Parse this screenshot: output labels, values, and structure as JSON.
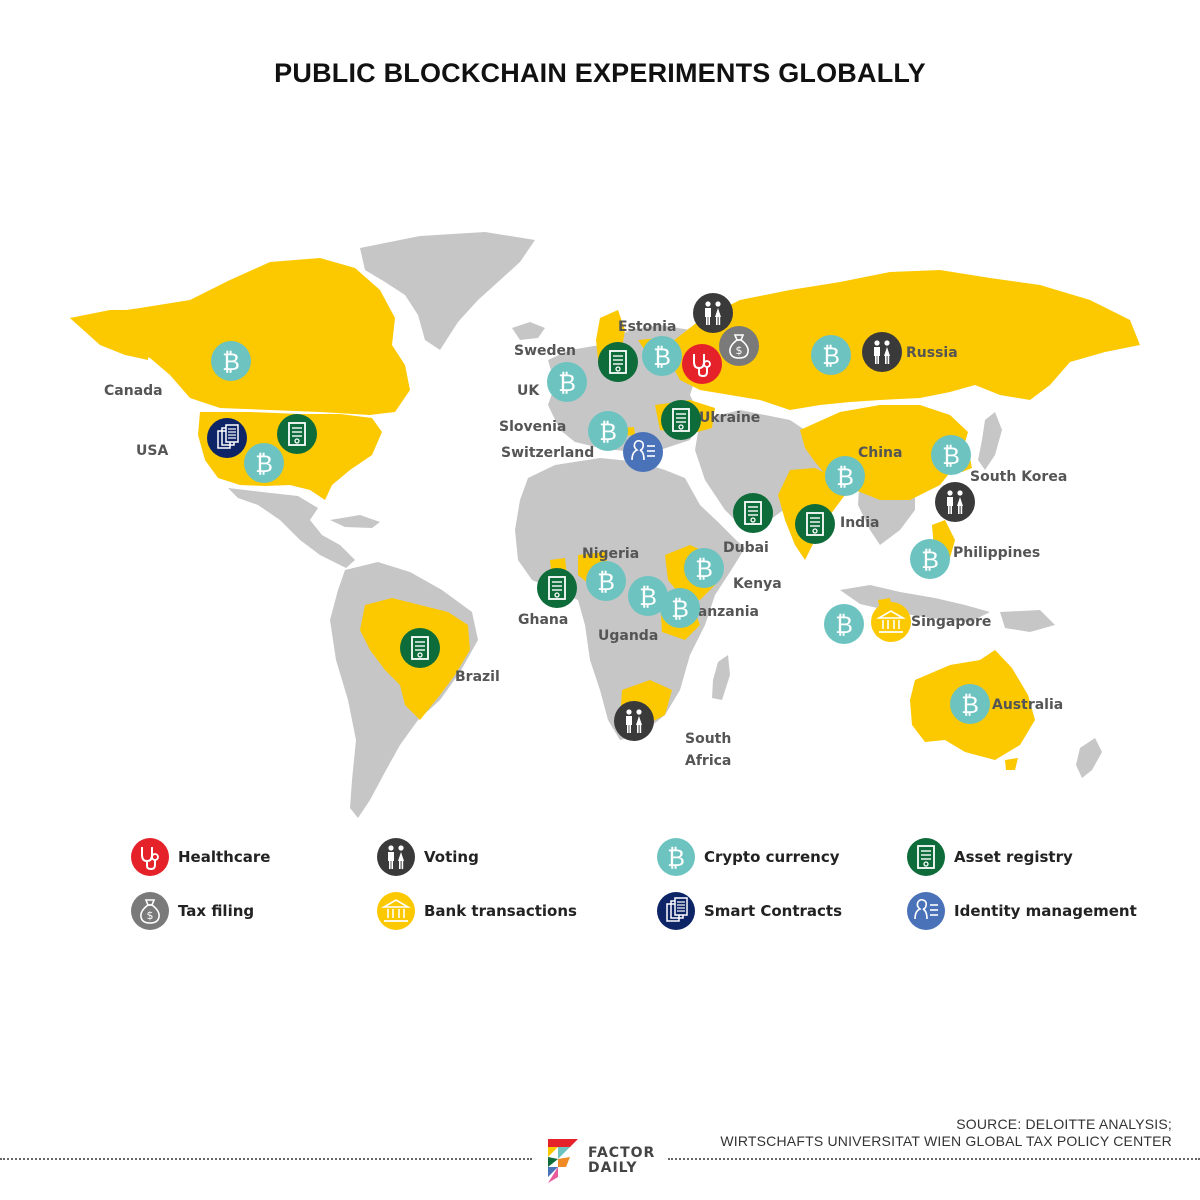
{
  "title": "PUBLIC BLOCKCHAIN EXPERIMENTS GLOBALLY",
  "colors": {
    "highlight": "#FCC800",
    "land": "#C6C6C6",
    "healthcare": "#E5212A",
    "voting": "#3A3A3A",
    "crypto": "#6CC3C0",
    "asset": "#0E6B3A",
    "tax": "#7A7A7A",
    "bank": "#FCC800",
    "smart": "#0D2466",
    "identity": "#4A72B8"
  },
  "countries": [
    {
      "name": "Canada",
      "icons": [
        "crypto"
      ]
    },
    {
      "name": "USA",
      "icons": [
        "smart",
        "asset",
        "crypto"
      ]
    },
    {
      "name": "Brazil",
      "icons": [
        "asset"
      ]
    },
    {
      "name": "Sweden",
      "icons": [
        "asset"
      ]
    },
    {
      "name": "Estonia",
      "icons": [
        "crypto",
        "voting",
        "healthcare",
        "tax"
      ]
    },
    {
      "name": "UK",
      "icons": [
        "crypto"
      ]
    },
    {
      "name": "Slovenia",
      "icons": [
        "crypto"
      ]
    },
    {
      "name": "Switzerland",
      "icons": [
        "identity"
      ]
    },
    {
      "name": "Ukraine",
      "icons": [
        "asset"
      ]
    },
    {
      "name": "Russia",
      "icons": [
        "crypto",
        "voting"
      ]
    },
    {
      "name": "China",
      "icons": [
        "crypto"
      ]
    },
    {
      "name": "South Korea",
      "icons": [
        "crypto",
        "voting"
      ]
    },
    {
      "name": "Dubai",
      "icons": [
        "asset"
      ]
    },
    {
      "name": "India",
      "icons": [
        "asset"
      ]
    },
    {
      "name": "Nigeria",
      "icons": [
        "crypto"
      ]
    },
    {
      "name": "Ghana",
      "icons": [
        "asset"
      ]
    },
    {
      "name": "Uganda",
      "icons": [
        "crypto"
      ]
    },
    {
      "name": "Kenya",
      "icons": [
        "crypto"
      ]
    },
    {
      "name": "Tanzania",
      "icons": [
        "crypto"
      ]
    },
    {
      "name": "Philippines",
      "icons": [
        "crypto"
      ]
    },
    {
      "name": "Singapore",
      "icons": [
        "crypto",
        "bank"
      ]
    },
    {
      "name": "Australia",
      "icons": [
        "crypto"
      ]
    },
    {
      "name": "South Africa",
      "icons": [
        "voting"
      ]
    }
  ],
  "labels": {
    "canada": "Canada",
    "usa": "USA",
    "brazil": "Brazil",
    "sweden": "Sweden",
    "estonia": "Estonia",
    "uk": "UK",
    "slovenia": "Slovenia",
    "switzerland": "Switzerland",
    "ukraine": "Ukraine",
    "russia": "Russia",
    "china": "China",
    "south_korea": "South Korea",
    "dubai": "Dubai",
    "india": "India",
    "nigeria": "Nigeria",
    "ghana": "Ghana",
    "uganda": "Uganda",
    "kenya": "Kenya",
    "tanzania": "Tanzania",
    "philippines": "Philippines",
    "singapore": "Singapore",
    "australia": "Australia",
    "south_africa_1": "South",
    "south_africa_2": "Africa"
  },
  "legend": {
    "healthcare": "Healthcare",
    "voting": "Voting",
    "crypto": "Crypto currency",
    "asset": "Asset registry",
    "tax": "Tax filing",
    "bank": "Bank transactions",
    "smart": "Smart Contracts",
    "identity": "Identity management"
  },
  "source": {
    "line1": "SOURCE: DELOITTE ANALYSIS;",
    "line2": "WIRTSCHAFTS UNIVERSITAT WIEN GLOBAL TAX POLICY CENTER"
  },
  "logo": {
    "line1": "FACTOR",
    "line2": "DAILY"
  }
}
